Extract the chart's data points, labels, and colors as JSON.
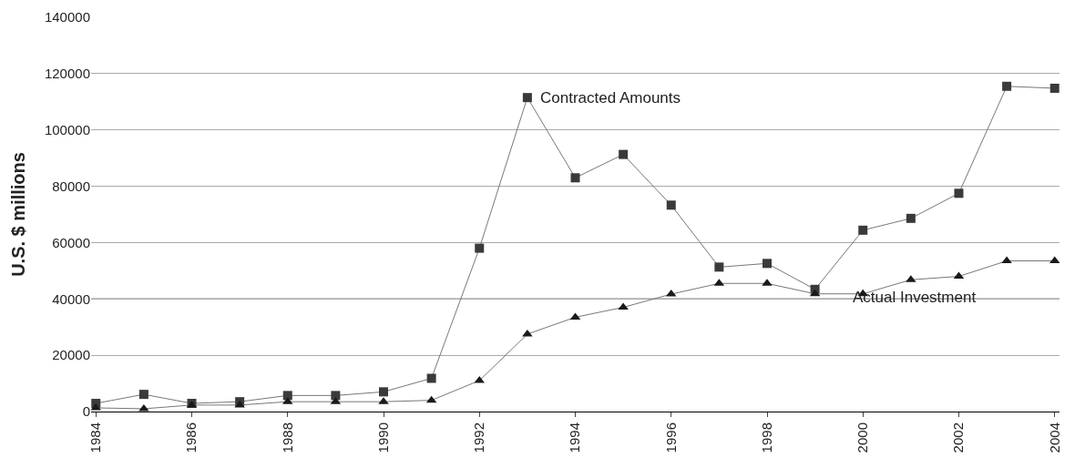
{
  "chart_data": {
    "type": "line",
    "ylabel": "U.S. $ millions",
    "x": [
      1984,
      1985,
      1986,
      1987,
      1988,
      1989,
      1990,
      1991,
      1992,
      1993,
      1994,
      1995,
      1996,
      1997,
      1998,
      1999,
      2000,
      2001,
      2002,
      2003,
      2004
    ],
    "series": [
      {
        "color": "#3a3a3a",
        "marker": "square",
        "values": [
          2900,
          6100,
          2900,
          3500,
          5700,
          5700,
          7000,
          11800,
          58000,
          111500,
          83000,
          91300,
          73300,
          51300,
          52600,
          43400,
          64400,
          68600,
          77500,
          115500,
          114800
        ]
      },
      {
        "color": "#1a1a1a",
        "marker": "triangle",
        "values": [
          1300,
          1000,
          2300,
          2300,
          3500,
          3500,
          3500,
          4000,
          11000,
          27500,
          33500,
          37000,
          41700,
          45500,
          45500,
          41800,
          41800,
          46800,
          48000,
          53500,
          53500
        ]
      }
    ],
    "xlim": [
      1983.9,
      2004.1
    ],
    "xticks": [
      1984,
      1986,
      1988,
      1990,
      1992,
      1994,
      1996,
      1998,
      2000,
      2002,
      2004
    ],
    "ylim": [
      0,
      140000
    ],
    "yticks": [
      0,
      20000,
      40000,
      60000,
      80000,
      100000,
      120000,
      140000
    ],
    "grid": "y",
    "ref_lines": [
      {
        "axis": "y",
        "value": 40000,
        "color": "#000000"
      }
    ],
    "annotations": [
      {
        "text": "Contracted Amounts",
        "x": 1993,
        "y": 111500
      },
      "Actual Investment"
    ]
  }
}
